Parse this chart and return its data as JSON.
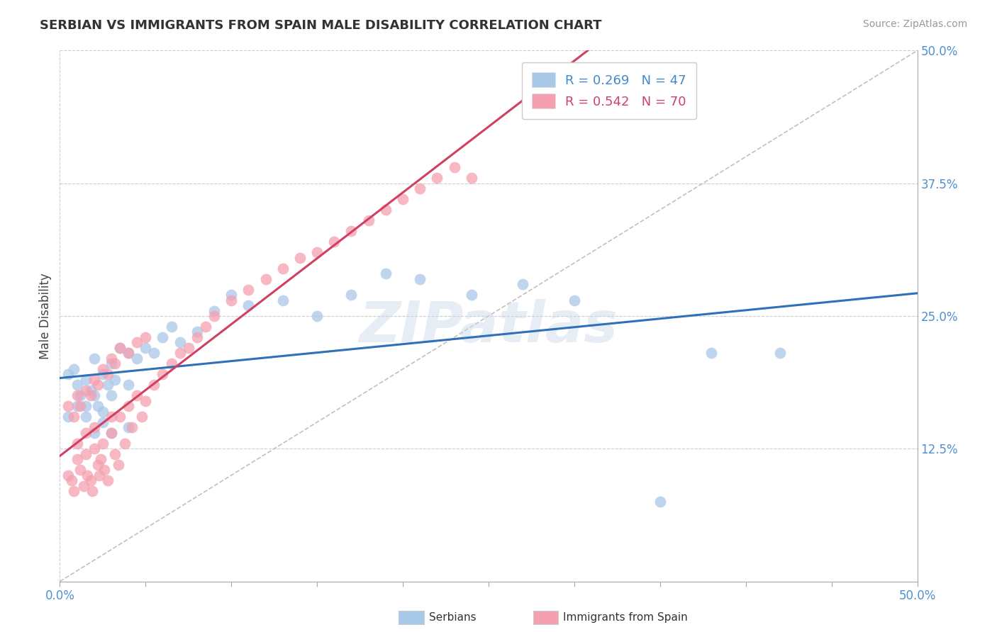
{
  "title": "SERBIAN VS IMMIGRANTS FROM SPAIN MALE DISABILITY CORRELATION CHART",
  "source": "Source: ZipAtlas.com",
  "ylabel": "Male Disability",
  "watermark": "ZIPatlas",
  "xlim": [
    0.0,
    0.5
  ],
  "ylim": [
    0.0,
    0.5
  ],
  "legend_r1": "R = 0.269   N = 47",
  "legend_r2": "R = 0.542   N = 70",
  "legend_label1": "Serbians",
  "legend_label2": "Immigrants from Spain",
  "blue_scatter_color": "#a8c8e8",
  "pink_scatter_color": "#f5a0b0",
  "blue_line_color": "#3070b8",
  "pink_line_color": "#d04060",
  "diag_color": "#c0c0c0",
  "grid_color": "#cccccc",
  "tick_label_color": "#5090d0",
  "background_color": "#ffffff",
  "blue_r_color": "#4488cc",
  "pink_r_color": "#cc4466",
  "serbian_x": [
    0.005,
    0.008,
    0.01,
    0.012,
    0.015,
    0.015,
    0.018,
    0.02,
    0.02,
    0.022,
    0.025,
    0.025,
    0.028,
    0.03,
    0.03,
    0.032,
    0.035,
    0.04,
    0.04,
    0.045,
    0.05,
    0.055,
    0.06,
    0.065,
    0.07,
    0.08,
    0.09,
    0.1,
    0.11,
    0.13,
    0.15,
    0.17,
    0.19,
    0.21,
    0.24,
    0.27,
    0.3,
    0.005,
    0.01,
    0.015,
    0.02,
    0.025,
    0.03,
    0.04,
    0.38,
    0.42,
    0.35
  ],
  "serbian_y": [
    0.195,
    0.2,
    0.185,
    0.175,
    0.19,
    0.165,
    0.18,
    0.175,
    0.21,
    0.165,
    0.195,
    0.16,
    0.185,
    0.175,
    0.205,
    0.19,
    0.22,
    0.185,
    0.215,
    0.21,
    0.22,
    0.215,
    0.23,
    0.24,
    0.225,
    0.235,
    0.255,
    0.27,
    0.26,
    0.265,
    0.25,
    0.27,
    0.29,
    0.285,
    0.27,
    0.28,
    0.265,
    0.155,
    0.165,
    0.155,
    0.14,
    0.15,
    0.14,
    0.145,
    0.215,
    0.215,
    0.075
  ],
  "spain_x": [
    0.005,
    0.007,
    0.008,
    0.01,
    0.01,
    0.012,
    0.014,
    0.015,
    0.015,
    0.016,
    0.018,
    0.019,
    0.02,
    0.02,
    0.022,
    0.023,
    0.024,
    0.025,
    0.026,
    0.028,
    0.03,
    0.03,
    0.032,
    0.034,
    0.035,
    0.038,
    0.04,
    0.042,
    0.045,
    0.048,
    0.05,
    0.055,
    0.06,
    0.065,
    0.07,
    0.075,
    0.08,
    0.085,
    0.09,
    0.1,
    0.11,
    0.12,
    0.13,
    0.14,
    0.15,
    0.16,
    0.17,
    0.18,
    0.19,
    0.2,
    0.21,
    0.22,
    0.23,
    0.24,
    0.005,
    0.008,
    0.01,
    0.012,
    0.015,
    0.018,
    0.02,
    0.022,
    0.025,
    0.028,
    0.03,
    0.032,
    0.035,
    0.04,
    0.045,
    0.05
  ],
  "spain_y": [
    0.1,
    0.095,
    0.085,
    0.115,
    0.13,
    0.105,
    0.09,
    0.12,
    0.14,
    0.1,
    0.095,
    0.085,
    0.125,
    0.145,
    0.11,
    0.1,
    0.115,
    0.13,
    0.105,
    0.095,
    0.14,
    0.155,
    0.12,
    0.11,
    0.155,
    0.13,
    0.165,
    0.145,
    0.175,
    0.155,
    0.17,
    0.185,
    0.195,
    0.205,
    0.215,
    0.22,
    0.23,
    0.24,
    0.25,
    0.265,
    0.275,
    0.285,
    0.295,
    0.305,
    0.31,
    0.32,
    0.33,
    0.34,
    0.35,
    0.36,
    0.37,
    0.38,
    0.39,
    0.38,
    0.165,
    0.155,
    0.175,
    0.165,
    0.18,
    0.175,
    0.19,
    0.185,
    0.2,
    0.195,
    0.21,
    0.205,
    0.22,
    0.215,
    0.225,
    0.23
  ]
}
